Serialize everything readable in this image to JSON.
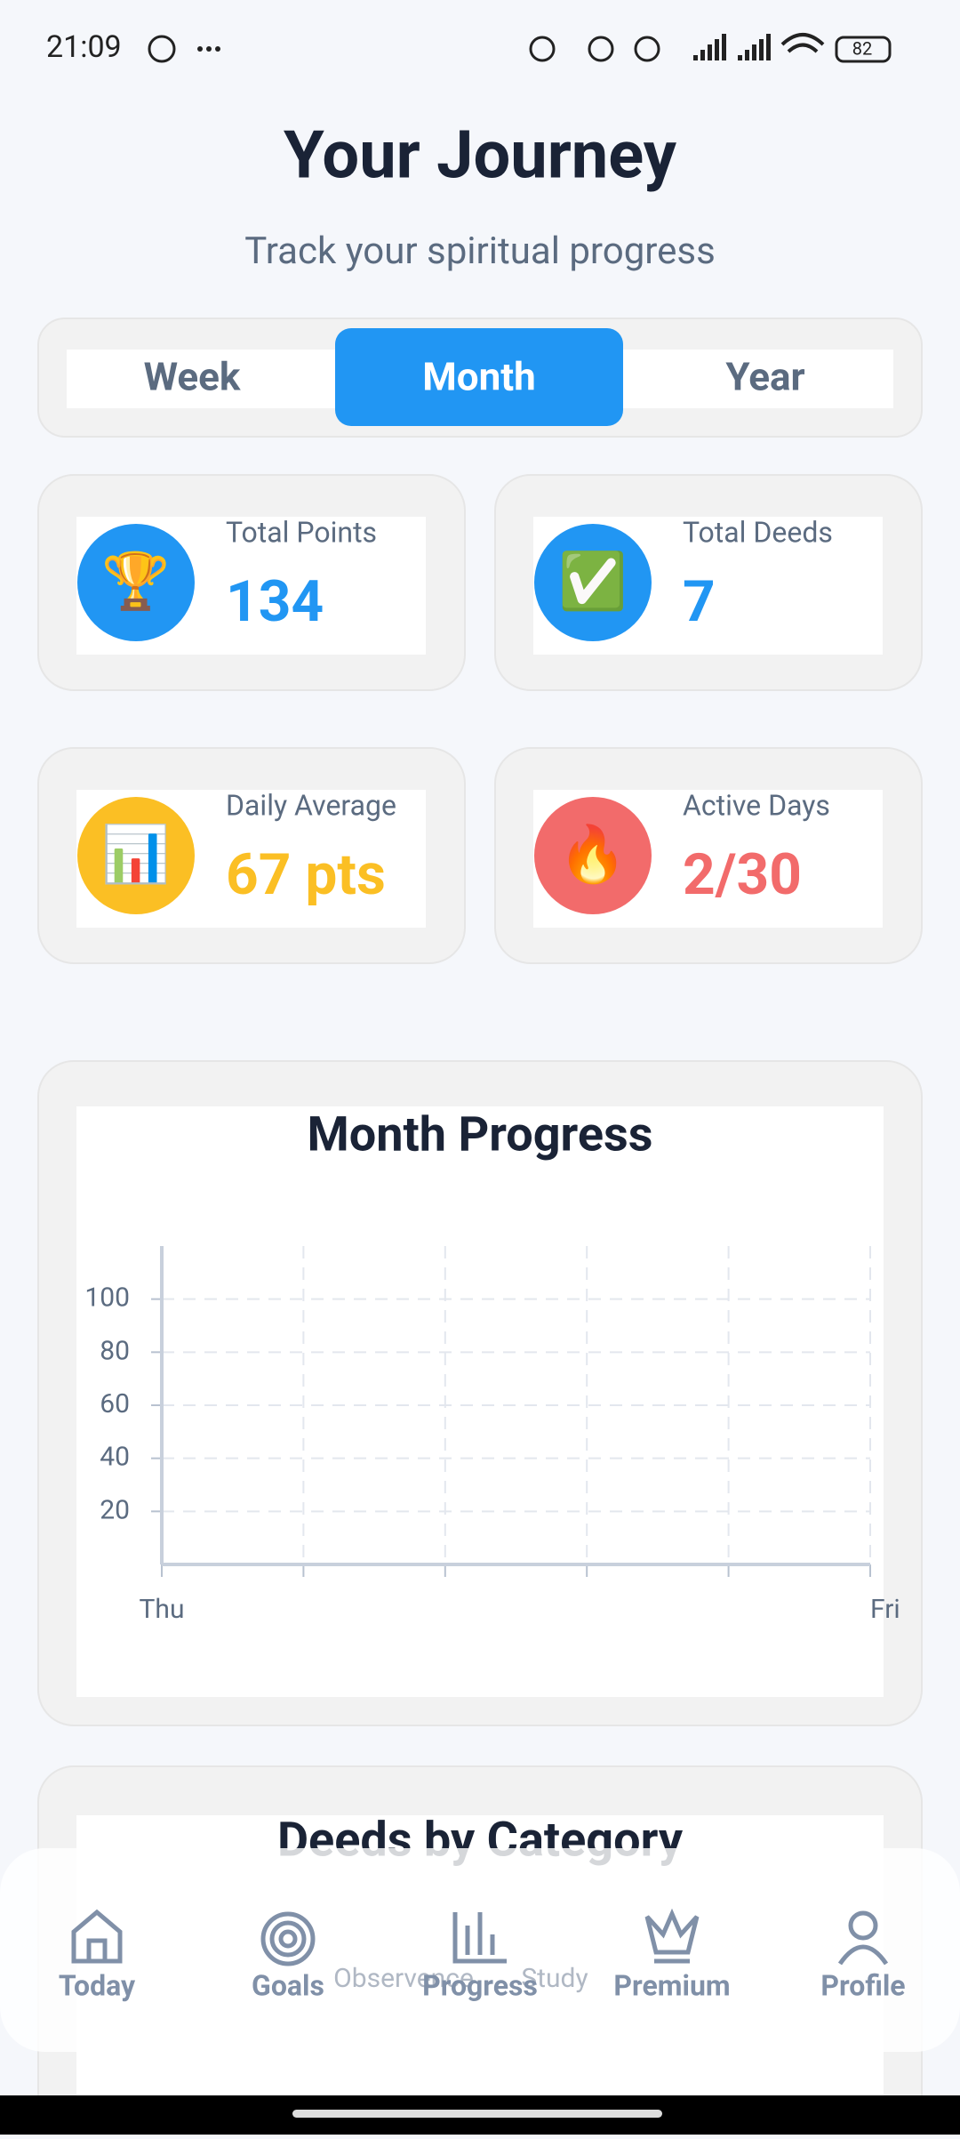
{
  "status_bar": {
    "time": "21:09",
    "battery": "82"
  },
  "header": {
    "title": "Your Journey",
    "subtitle": "Track your spiritual progress"
  },
  "tabs": {
    "items": [
      "Week",
      "Month",
      "Year"
    ],
    "active": 1
  },
  "stats": [
    {
      "icon": "🏆",
      "label": "Total Points",
      "value": 134,
      "color": "#2196f3"
    },
    {
      "icon": "✅",
      "label": "Total Deeds",
      "value": 7,
      "color": "#2196f3"
    },
    {
      "icon": "📊",
      "label": "Daily Average",
      "value": "67 pts",
      "color": "#fbbf24"
    },
    {
      "icon": "🔥",
      "label": "Active Days",
      "value": "2/30",
      "color": "#f26b6b"
    }
  ],
  "progress_chart": {
    "title": "Month Progress",
    "categories": [
      "Thu",
      null,
      null,
      null,
      null,
      "Fri"
    ],
    "ylim": [
      0,
      120
    ],
    "yticks": [
      20,
      40,
      60,
      80,
      100
    ],
    "grid": true
  },
  "category_chart": {
    "title": "Deeds by Category",
    "legend": [
      "Observence",
      "Study"
    ]
  },
  "nav": [
    {
      "label": "Today"
    },
    {
      "label": "Goals"
    },
    {
      "label": "Progress"
    },
    {
      "label": "Premium"
    },
    {
      "label": "Profile"
    }
  ]
}
